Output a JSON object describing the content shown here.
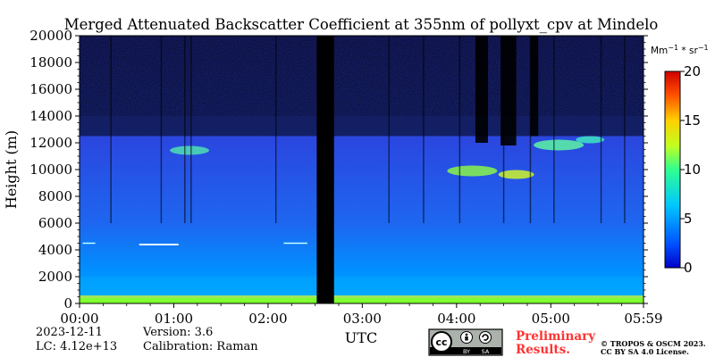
{
  "chart_data": {
    "type": "heatmap",
    "title": "Merged Attenuated Backscatter Coefficient at 355nm of pollyxt_cpv at Mindelo",
    "xlabel": "UTC",
    "ylabel": "Height (m)",
    "x_ticks": [
      "00:00",
      "01:00",
      "02:00",
      "03:00",
      "04:00",
      "05:00",
      "05:59"
    ],
    "x_tick_minutes": [
      0,
      60,
      120,
      180,
      240,
      300,
      359
    ],
    "xlim_minutes": [
      0,
      359
    ],
    "y_ticks": [
      0,
      2000,
      4000,
      6000,
      8000,
      10000,
      12000,
      14000,
      16000,
      18000,
      20000
    ],
    "ylim": [
      0,
      20000
    ],
    "colorbar": {
      "unit_base": "Mm",
      "unit_exp1": "−1",
      "unit_mid": " * sr",
      "unit_exp2": "−1",
      "ticks": [
        0,
        5,
        10,
        15,
        20
      ],
      "range": [
        0,
        20
      ],
      "colormap": "jet"
    },
    "no_data_interval_minutes": [
      151,
      162
    ],
    "features": {
      "surface_layer_top_m": 400,
      "boundary_layer_top_m": 2000,
      "elevated_layer_m": [
        4300,
        4500
      ],
      "cloud_layer_m": [
        9500,
        12500
      ]
    }
  },
  "footer": {
    "date": "2023-12-11",
    "lc": "LC: 4.12e+13",
    "version": "Version: 3.6",
    "calibration": "Calibration: Raman",
    "preliminary_line1": "Preliminary",
    "preliminary_line2": "Results.",
    "copyright_line1": "© TROPOS & OSCM 2023.",
    "copyright_line2": "CC BY SA 4.0 License."
  },
  "license_badge": {
    "cc": "cc",
    "by": "BY",
    "sa": "SA"
  },
  "colors": {
    "preliminary": "#ff3333",
    "badge_bg": "#aab2ab"
  }
}
